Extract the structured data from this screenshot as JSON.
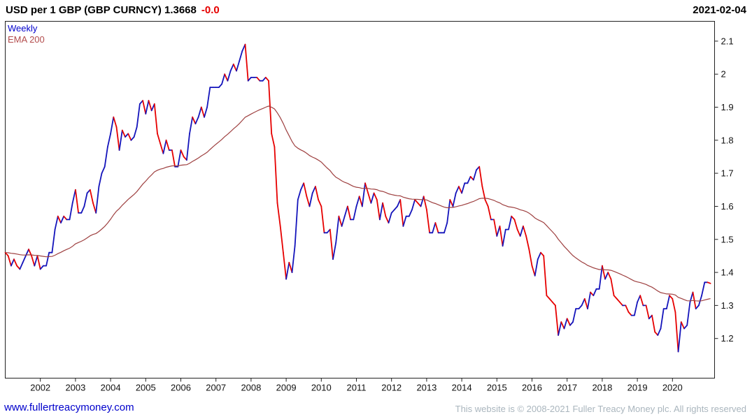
{
  "header": {
    "title": "USD per 1 GBP (GBP CURNCY) 1.3668",
    "change": "-0.0",
    "date": "2021-02-04"
  },
  "legend": {
    "items": [
      {
        "label": "Weekly"
      },
      {
        "label": "EMA 200"
      }
    ]
  },
  "footer": {
    "site_link": "www.fullertreacymoney.com",
    "copyright": "This website is © 2008-2021 Fuller Treacy Money plc. All rights reserved"
  },
  "colors": {
    "price_up": "#1414bb",
    "price_down": "#e60000",
    "ema": "#9e4040",
    "change": "#e60000",
    "link": "#0000cc",
    "copyright": "#aab6be",
    "axis_text": "#111111",
    "border": "#222222",
    "legend_weekly": "#0000cc",
    "legend_ema": "#b34d4d"
  },
  "chart_data": {
    "type": "line",
    "title": "USD per 1 GBP (GBP CURNCY)",
    "legend_entries": [
      "Weekly",
      "EMA 200"
    ],
    "x_start_year": 2001,
    "points_per_year": 12,
    "ema_period_weeks": 200,
    "ylim": [
      1.08,
      2.16
    ],
    "xlim_years": [
      2001.0,
      2021.2
    ],
    "y_ticks": [
      1.2,
      1.3,
      1.4,
      1.5,
      1.6,
      1.7,
      1.8,
      1.9,
      2.0,
      2.1
    ],
    "x_ticks": [
      2002,
      2003,
      2004,
      2005,
      2006,
      2007,
      2008,
      2009,
      2010,
      2011,
      2012,
      2013,
      2014,
      2015,
      2016,
      2017,
      2018,
      2019,
      2020
    ],
    "grid": false,
    "values": [
      1.46,
      1.45,
      1.42,
      1.44,
      1.42,
      1.41,
      1.43,
      1.45,
      1.47,
      1.45,
      1.42,
      1.45,
      1.41,
      1.42,
      1.42,
      1.46,
      1.46,
      1.53,
      1.57,
      1.55,
      1.57,
      1.56,
      1.56,
      1.61,
      1.65,
      1.58,
      1.58,
      1.6,
      1.64,
      1.65,
      1.61,
      1.58,
      1.66,
      1.7,
      1.72,
      1.78,
      1.82,
      1.87,
      1.84,
      1.77,
      1.83,
      1.81,
      1.82,
      1.8,
      1.81,
      1.84,
      1.91,
      1.92,
      1.88,
      1.92,
      1.89,
      1.91,
      1.82,
      1.79,
      1.76,
      1.8,
      1.77,
      1.77,
      1.72,
      1.72,
      1.77,
      1.75,
      1.74,
      1.82,
      1.87,
      1.85,
      1.87,
      1.9,
      1.87,
      1.9,
      1.96,
      1.96,
      1.96,
      1.96,
      1.97,
      2.0,
      1.98,
      2.01,
      2.03,
      2.01,
      2.04,
      2.07,
      2.09,
      1.98,
      1.99,
      1.99,
      1.99,
      1.98,
      1.98,
      1.99,
      1.98,
      1.82,
      1.78,
      1.61,
      1.54,
      1.46,
      1.38,
      1.43,
      1.4,
      1.48,
      1.62,
      1.65,
      1.67,
      1.63,
      1.6,
      1.64,
      1.66,
      1.62,
      1.6,
      1.52,
      1.52,
      1.53,
      1.44,
      1.49,
      1.57,
      1.54,
      1.57,
      1.6,
      1.56,
      1.56,
      1.6,
      1.63,
      1.6,
      1.67,
      1.64,
      1.61,
      1.64,
      1.62,
      1.56,
      1.61,
      1.57,
      1.55,
      1.58,
      1.59,
      1.6,
      1.62,
      1.54,
      1.57,
      1.57,
      1.59,
      1.62,
      1.61,
      1.6,
      1.63,
      1.59,
      1.52,
      1.52,
      1.55,
      1.52,
      1.52,
      1.52,
      1.55,
      1.62,
      1.6,
      1.64,
      1.66,
      1.64,
      1.67,
      1.67,
      1.69,
      1.68,
      1.71,
      1.72,
      1.66,
      1.62,
      1.6,
      1.56,
      1.56,
      1.51,
      1.54,
      1.48,
      1.53,
      1.53,
      1.57,
      1.56,
      1.53,
      1.51,
      1.54,
      1.51,
      1.47,
      1.42,
      1.39,
      1.44,
      1.46,
      1.45,
      1.33,
      1.32,
      1.31,
      1.3,
      1.21,
      1.25,
      1.23,
      1.26,
      1.24,
      1.25,
      1.29,
      1.29,
      1.3,
      1.32,
      1.29,
      1.34,
      1.33,
      1.35,
      1.35,
      1.42,
      1.38,
      1.4,
      1.38,
      1.33,
      1.32,
      1.31,
      1.3,
      1.3,
      1.28,
      1.27,
      1.27,
      1.31,
      1.33,
      1.3,
      1.3,
      1.26,
      1.27,
      1.22,
      1.21,
      1.23,
      1.29,
      1.29,
      1.33,
      1.32,
      1.28,
      1.16,
      1.25,
      1.23,
      1.24,
      1.31,
      1.34,
      1.29,
      1.3,
      1.33,
      1.37,
      1.37,
      1.3668
    ]
  }
}
